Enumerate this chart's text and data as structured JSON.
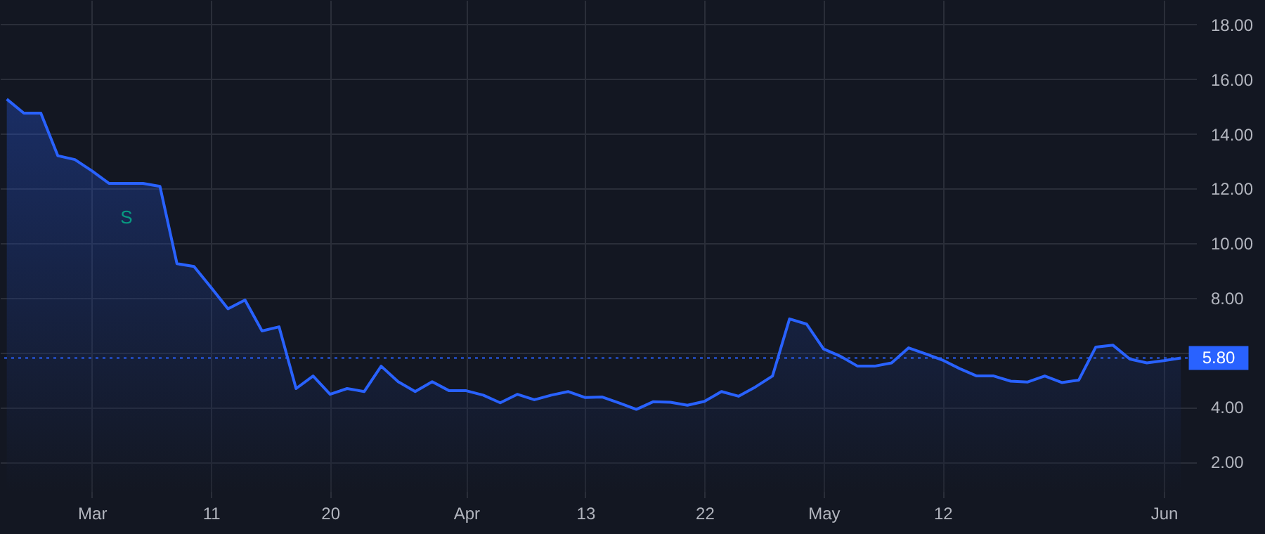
{
  "chart_data": {
    "type": "area",
    "categories": [
      null,
      null,
      null,
      null,
      null,
      "Mar",
      null,
      null,
      null,
      null,
      null,
      null,
      "11",
      null,
      null,
      null,
      null,
      null,
      null,
      "20",
      null,
      null,
      null,
      null,
      null,
      null,
      null,
      "Apr",
      null,
      null,
      null,
      null,
      null,
      null,
      "13",
      null,
      null,
      null,
      null,
      null,
      null,
      "22",
      null,
      null,
      null,
      null,
      null,
      null,
      "May",
      null,
      null,
      null,
      null,
      null,
      null,
      "12",
      null,
      null,
      null,
      null,
      null,
      null,
      null,
      null,
      null,
      null,
      null,
      null,
      "Jun",
      null
    ],
    "series": [
      {
        "color": "#2962ff",
        "values": [
          15.27,
          14.76,
          14.76,
          13.2,
          13.06,
          12.65,
          12.19,
          12.19,
          12.19,
          12.08,
          9.25,
          9.15,
          8.38,
          7.6,
          7.92,
          6.79,
          6.94,
          4.68,
          5.14,
          4.47,
          4.68,
          4.57,
          5.5,
          4.93,
          4.57,
          4.93,
          4.6,
          4.6,
          4.44,
          4.16,
          4.47,
          4.27,
          4.44,
          4.57,
          4.35,
          4.37,
          4.15,
          3.92,
          4.2,
          4.18,
          4.07,
          4.21,
          4.57,
          4.4,
          4.74,
          5.14,
          7.23,
          7.04,
          6.13,
          5.86,
          5.5,
          5.5,
          5.62,
          6.17,
          5.95,
          5.72,
          5.41,
          5.14,
          5.14,
          4.95,
          4.92,
          5.14,
          4.9,
          4.99,
          6.2,
          6.27,
          5.76,
          5.62,
          5.7,
          5.8
        ]
      }
    ],
    "ylim": [
      0.9,
      18.9
    ],
    "yticks": [
      {
        "value": 2,
        "label": "2.00"
      },
      {
        "value": 4,
        "label": "4.00"
      },
      {
        "value": 6,
        "label": null
      },
      {
        "value": 8,
        "label": "8.00"
      },
      {
        "value": 10,
        "label": "10.00"
      },
      {
        "value": 12,
        "label": "12.00"
      },
      {
        "value": 14,
        "label": "14.00"
      },
      {
        "value": 16,
        "label": "16.00"
      },
      {
        "value": 18,
        "label": "18.00"
      }
    ],
    "ref_lines": [
      {
        "axis": "y",
        "value": 5.8,
        "label": "5.80",
        "color": "#2962ff",
        "line_style": "dotted"
      }
    ],
    "annotations": [
      "S"
    ],
    "grid": true,
    "marker": "none",
    "line_style": "solid"
  }
}
